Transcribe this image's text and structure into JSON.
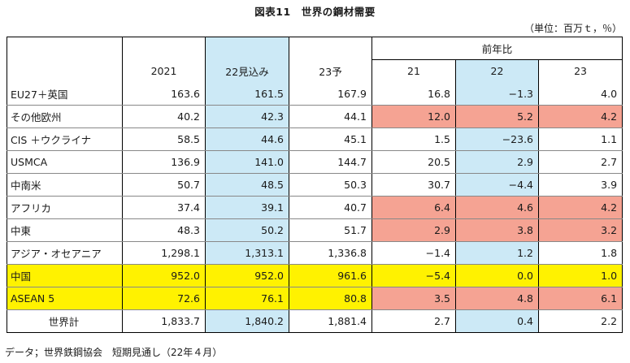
{
  "title": "図表11　世界の鋼材需要",
  "unit": "（単位：百万ｔ，％）",
  "header": {
    "group": "前年比",
    "columns": [
      "2021",
      "22見込み",
      "23予",
      "21",
      "22",
      "23"
    ]
  },
  "rows": [
    {
      "label": "EU27＋英国",
      "values": [
        "163.6",
        "161.5",
        "167.9",
        "16.8",
        "−1.3",
        "4.0"
      ]
    },
    {
      "label": "その他欧州",
      "values": [
        "40.2",
        "42.3",
        "44.1",
        "12.0",
        "5.2",
        "4.2"
      ]
    },
    {
      "label": "CIS ＋ウクライナ",
      "values": [
        "58.5",
        "44.6",
        "45.1",
        "1.5",
        "−23.6",
        "1.1"
      ]
    },
    {
      "label": "USMCA",
      "values": [
        "136.9",
        "141.0",
        "144.7",
        "20.5",
        "2.9",
        "2.7"
      ]
    },
    {
      "label": "中南米",
      "values": [
        "50.7",
        "48.5",
        "50.3",
        "30.7",
        "−4.4",
        "3.9"
      ]
    },
    {
      "label": "アフリカ",
      "values": [
        "37.4",
        "39.1",
        "40.7",
        "6.4",
        "4.6",
        "4.2"
      ]
    },
    {
      "label": "中東",
      "values": [
        "48.3",
        "50.2",
        "51.7",
        "2.9",
        "3.8",
        "3.2"
      ]
    },
    {
      "label": "アジア・オセアニア",
      "values": [
        "1,298.1",
        "1,313.1",
        "1,336.8",
        "−1.4",
        "1.2",
        "1.8"
      ]
    },
    {
      "label": "中国",
      "values": [
        "952.0",
        "952.0",
        "961.6",
        "−5.4",
        "0.0",
        "1.0"
      ]
    },
    {
      "label": "ASEAN 5",
      "values": [
        "72.6",
        "76.1",
        "80.8",
        "3.5",
        "4.8",
        "6.1"
      ]
    }
  ],
  "total": {
    "label": "世界計",
    "values": [
      "1,833.7",
      "1,840.2",
      "1,881.4",
      "2.7",
      "0.4",
      "2.2"
    ]
  },
  "source": "データ；世界鉄鋼協会　短期見通し（22年４月）",
  "colors": {
    "blue": "#cce9f6",
    "yellow": "#fff200",
    "pink": "#f5a393"
  }
}
